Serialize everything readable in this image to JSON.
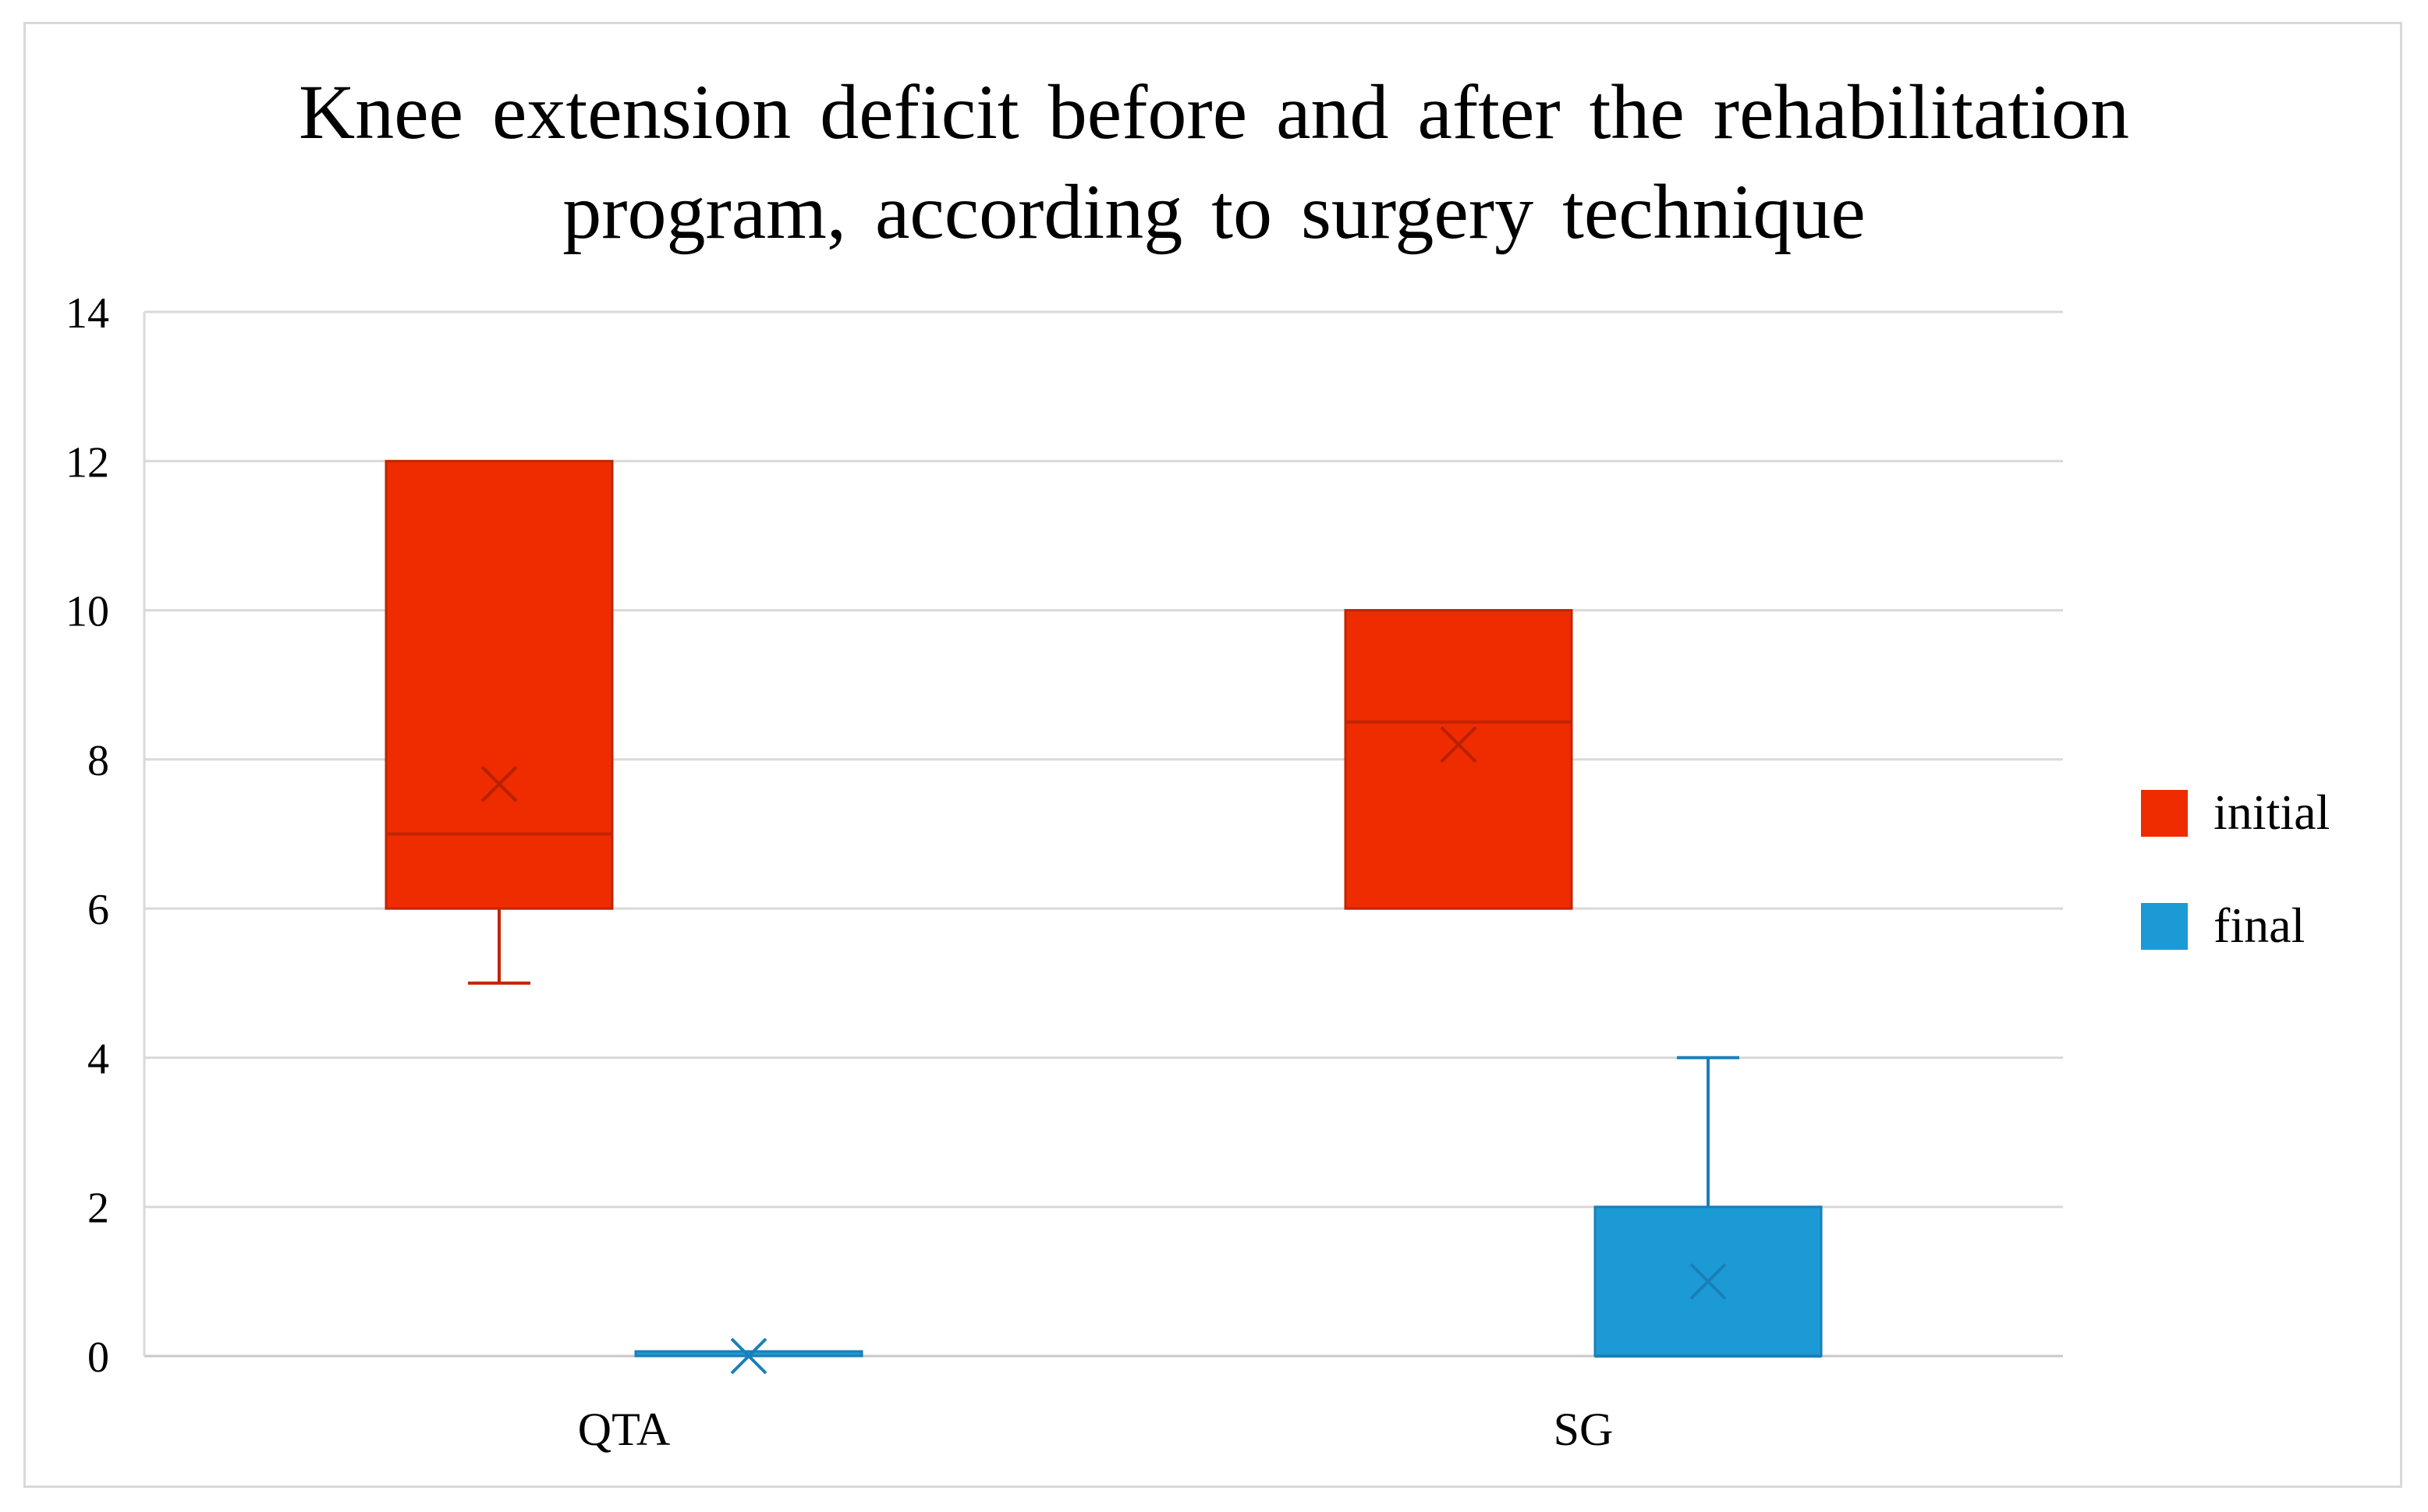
{
  "chart_data": {
    "type": "boxplot",
    "title": "Knee extension deficit before and after the rehabilitation\nprogram, according to surgery technique",
    "xlabel": "",
    "ylabel": "",
    "ylim": [
      0,
      14
    ],
    "yticks": [
      0,
      2,
      4,
      6,
      8,
      10,
      12,
      14
    ],
    "grid": true,
    "legend_position": "right",
    "categories": [
      "QTA",
      "SG"
    ],
    "series": [
      {
        "name": "initial",
        "color": "#ee2c00",
        "boxes": [
          {
            "category": "QTA",
            "min": 5,
            "q1": 6,
            "median": 7,
            "q3": 12,
            "max": 12,
            "mean": 7.67
          },
          {
            "category": "SG",
            "min": 6,
            "q1": 6,
            "median": 8.5,
            "q3": 10,
            "max": 10,
            "mean": 8.2
          }
        ]
      },
      {
        "name": "final",
        "color": "#1b9ad6",
        "boxes": [
          {
            "category": "QTA",
            "min": 0,
            "q1": 0,
            "median": 0,
            "q3": 0,
            "max": 0,
            "mean": 0
          },
          {
            "category": "SG",
            "min": 0,
            "q1": 0,
            "median": 0,
            "q3": 2,
            "max": 4,
            "mean": 1
          }
        ]
      }
    ]
  }
}
